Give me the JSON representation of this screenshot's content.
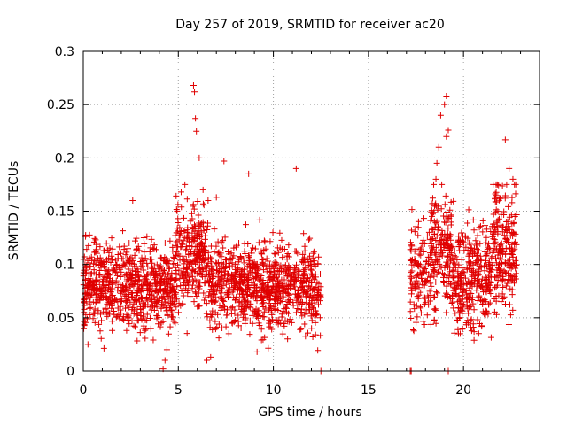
{
  "chart_data": {
    "type": "scatter",
    "title": "Day 257 of 2019, SRMTID for receiver ac20",
    "xlabel": "GPS time / hours",
    "ylabel": "SRMTID / TECUs",
    "xlim": [
      0,
      24
    ],
    "ylim": [
      0,
      0.3
    ],
    "xticks": [
      0,
      5,
      10,
      15,
      20
    ],
    "yticks": [
      0,
      0.05,
      0.1,
      0.15,
      0.2,
      0.25,
      0.3
    ],
    "xtick_labels": [
      "0",
      "5",
      "10",
      "15",
      "20"
    ],
    "ytick_labels": [
      "0",
      "0.05",
      "0.1",
      "0.15",
      "0.2",
      "0.25",
      "0.3"
    ],
    "grid": true,
    "marker": "+",
    "color": "#e00000",
    "series": [
      {
        "name": "ac20",
        "segments": [
          {
            "x_start": 0.0,
            "x_end": 12.5,
            "typical_range": [
              0.03,
              0.13
            ],
            "note": "dense cloud of points"
          },
          {
            "x_start": 17.2,
            "x_end": 22.8,
            "typical_range": [
              0.03,
              0.15
            ],
            "note": "dense cloud of points"
          }
        ],
        "highlights": [
          {
            "x": 5.8,
            "y": 0.268
          },
          {
            "x": 5.85,
            "y": 0.262
          },
          {
            "x": 5.9,
            "y": 0.237
          },
          {
            "x": 5.95,
            "y": 0.225
          },
          {
            "x": 6.1,
            "y": 0.2
          },
          {
            "x": 6.3,
            "y": 0.17
          },
          {
            "x": 7.4,
            "y": 0.197
          },
          {
            "x": 8.7,
            "y": 0.185
          },
          {
            "x": 11.2,
            "y": 0.19
          },
          {
            "x": 2.6,
            "y": 0.16
          },
          {
            "x": 7.0,
            "y": 0.163
          },
          {
            "x": 4.2,
            "y": 0.002
          },
          {
            "x": 4.3,
            "y": 0.01
          },
          {
            "x": 4.4,
            "y": 0.02
          },
          {
            "x": 6.5,
            "y": 0.01
          },
          {
            "x": 6.7,
            "y": 0.013
          },
          {
            "x": 12.5,
            "y": 0.0
          },
          {
            "x": 17.2,
            "y": 0.0
          },
          {
            "x": 17.25,
            "y": 0.0
          },
          {
            "x": 19.2,
            "y": 0.0
          },
          {
            "x": 19.1,
            "y": 0.258
          },
          {
            "x": 19.0,
            "y": 0.25
          },
          {
            "x": 18.8,
            "y": 0.24
          },
          {
            "x": 19.2,
            "y": 0.226
          },
          {
            "x": 19.1,
            "y": 0.22
          },
          {
            "x": 18.7,
            "y": 0.21
          },
          {
            "x": 22.2,
            "y": 0.217
          },
          {
            "x": 22.4,
            "y": 0.19
          },
          {
            "x": 22.6,
            "y": 0.18
          },
          {
            "x": 18.6,
            "y": 0.195
          },
          {
            "x": 18.55,
            "y": 0.18
          }
        ]
      }
    ]
  }
}
